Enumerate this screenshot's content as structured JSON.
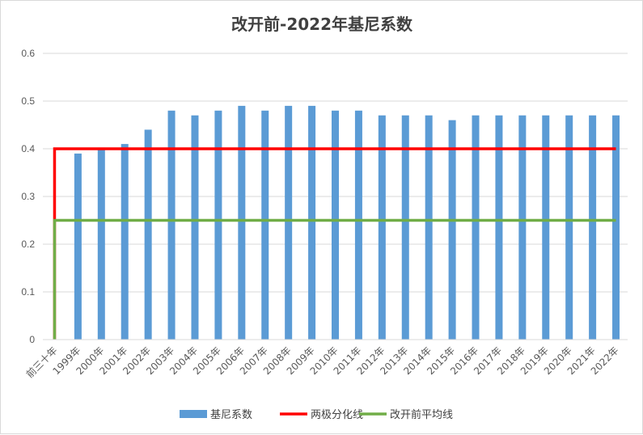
{
  "chart_data": {
    "type": "bar",
    "title": "改开前-2022年基尼系数",
    "categories": [
      "前三十年",
      "1999年",
      "2000年",
      "2001年",
      "2002年",
      "2003年",
      "2004年",
      "2005年",
      "2006年",
      "2007年",
      "2008年",
      "2009年",
      "2010年",
      "2011年",
      "2012年",
      "2013年",
      "2014年",
      "2015年",
      "2016年",
      "2017年",
      "2018年",
      "2019年",
      "2020年",
      "2021年",
      "2022年"
    ],
    "series": [
      {
        "name": "基尼系数",
        "type": "bar",
        "color": "#5b9bd5",
        "values": [
          null,
          0.39,
          0.4,
          0.41,
          0.44,
          0.48,
          0.47,
          0.48,
          0.49,
          0.48,
          0.49,
          0.49,
          0.48,
          0.48,
          0.47,
          0.47,
          0.47,
          0.46,
          0.47,
          0.47,
          0.47,
          0.47,
          0.47,
          0.47,
          0.47
        ]
      },
      {
        "name": "两极分化线",
        "type": "line",
        "color": "#ff0000",
        "values": [
          0.4,
          0.4,
          0.4,
          0.4,
          0.4,
          0.4,
          0.4,
          0.4,
          0.4,
          0.4,
          0.4,
          0.4,
          0.4,
          0.4,
          0.4,
          0.4,
          0.4,
          0.4,
          0.4,
          0.4,
          0.4,
          0.4,
          0.4,
          0.4,
          0.4
        ]
      },
      {
        "name": "改开前平均线",
        "type": "line",
        "color": "#70ad47",
        "values": [
          0.25,
          0.25,
          0.25,
          0.25,
          0.25,
          0.25,
          0.25,
          0.25,
          0.25,
          0.25,
          0.25,
          0.25,
          0.25,
          0.25,
          0.25,
          0.25,
          0.25,
          0.25,
          0.25,
          0.25,
          0.25,
          0.25,
          0.25,
          0.25,
          0.25
        ]
      }
    ],
    "ylim": [
      0,
      0.6
    ],
    "yticks": [
      "0",
      "0.1",
      "0.2",
      "0.3",
      "0.4",
      "0.5",
      "0.6"
    ],
    "grid": true,
    "legend_position": "bottom",
    "xlabel": "",
    "ylabel": ""
  }
}
